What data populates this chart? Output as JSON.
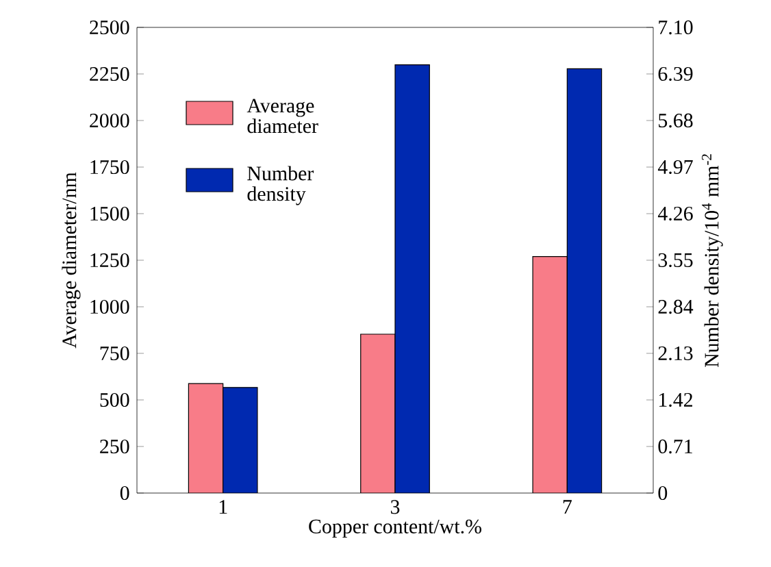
{
  "chart_data": {
    "type": "bar",
    "xlabel": "Copper content/wt.%",
    "ylabel": "Average diameter/nm",
    "y2label": "Number density/10$^{4}$ mm$^{-2}$",
    "categories": [
      "1",
      "3",
      "7"
    ],
    "series": [
      {
        "name": "Average diameter",
        "color": "#f87c88",
        "values": [
          588,
          853,
          1270
        ]
      },
      {
        "name": "Number density",
        "color": "#0029b0",
        "values": [
          1.61,
          6.53,
          6.47
        ],
        "axis": "y2"
      }
    ],
    "ylim": [
      0,
      2500
    ],
    "yticks": [
      0,
      250,
      500,
      750,
      1000,
      1250,
      1500,
      1750,
      2000,
      2250,
      2500
    ],
    "y2lim": [
      0,
      7.1
    ],
    "y2ticks": [
      0,
      0.71,
      1.42,
      2.13,
      2.84,
      3.55,
      4.26,
      4.97,
      5.68,
      6.39,
      {
        "value": 7.1,
        "label": "7.10"
      }
    ],
    "legend": "top left"
  }
}
